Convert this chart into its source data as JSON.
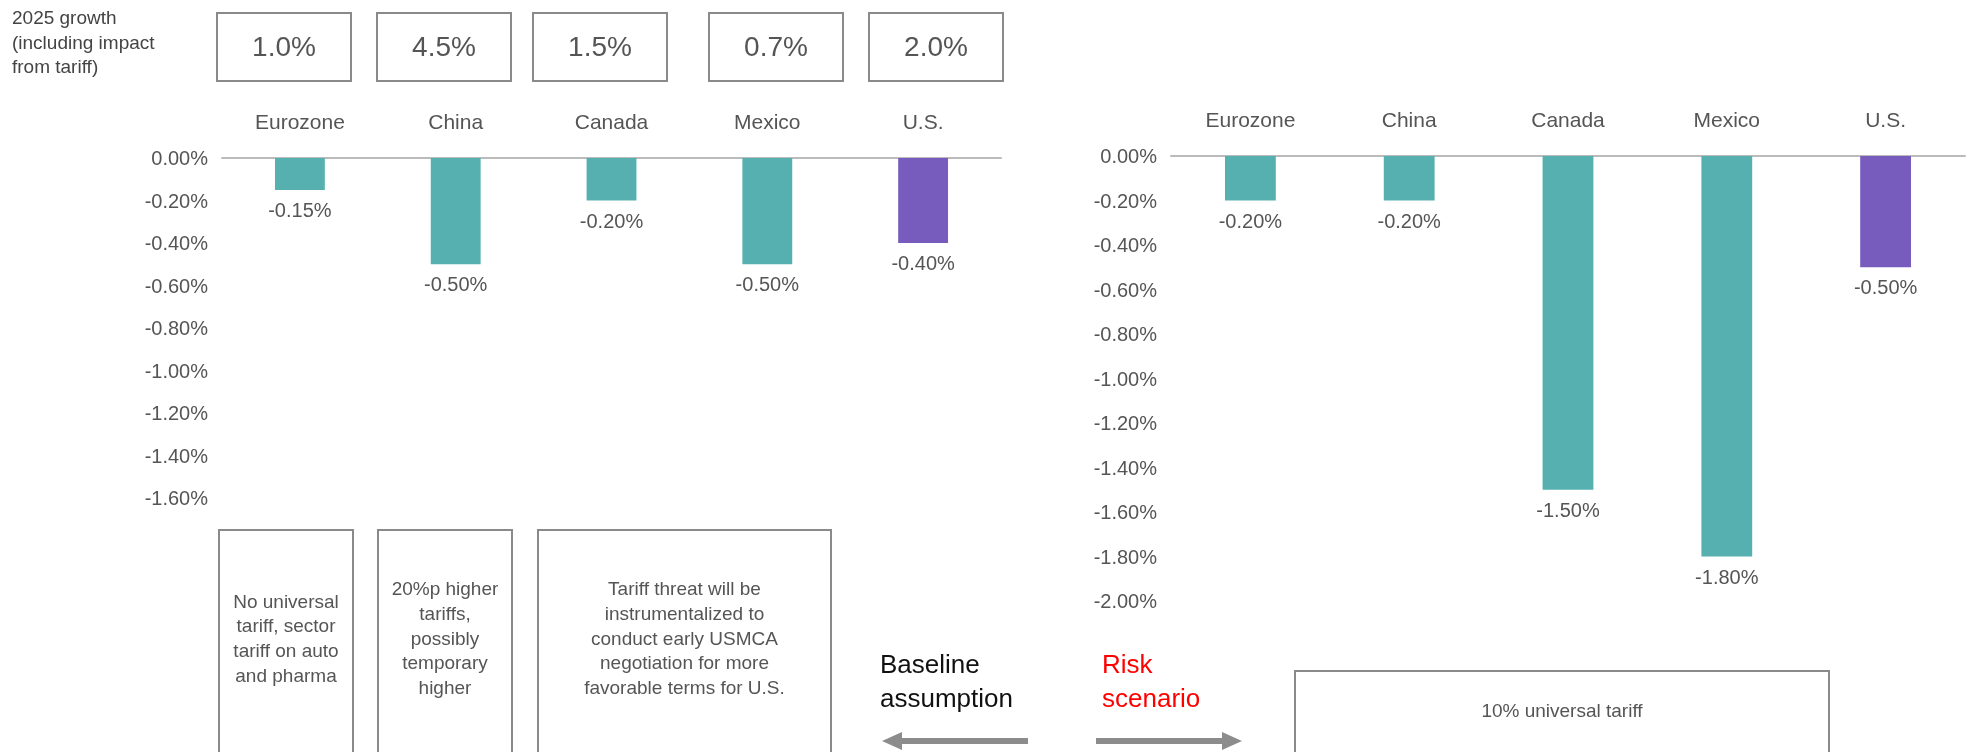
{
  "chart_data": [
    {
      "type": "bar",
      "categories": [
        "Eurozone",
        "China",
        "Canada",
        "Mexico",
        "U.S."
      ],
      "values": [
        -0.15,
        -0.5,
        -0.2,
        -0.5,
        -0.4
      ],
      "colors": [
        "#56b0b0",
        "#56b0b0",
        "#56b0b0",
        "#56b0b0",
        "#775cbd"
      ],
      "value_labels": [
        "-0.15%",
        "-0.50%",
        "-0.20%",
        "-0.50%",
        "-0.40%"
      ],
      "ylim": [
        -1.6,
        0
      ],
      "yticks": [
        {
          "value": 0,
          "label": "0.00%"
        },
        {
          "value": -0.2,
          "label": "-0.20%"
        },
        {
          "value": -0.4,
          "label": "-0.40%"
        },
        {
          "value": -0.6,
          "label": "-0.60%"
        },
        {
          "value": -0.8,
          "label": "-0.80%"
        },
        {
          "value": -1,
          "label": "-1.00%"
        },
        {
          "value": -1.2,
          "label": "-1.20%"
        },
        {
          "value": -1.4,
          "label": "-1.40%"
        },
        {
          "value": -1.6,
          "label": "-1.60%"
        }
      ],
      "grid": false,
      "annotations": [
        "2025 growth (including impact from tariff)",
        "1.0%",
        "4.5%",
        "1.5%",
        "0.7%",
        "2.0%",
        "No universal tariff, sector tariff on auto and pharma",
        "20%p higher tariffs, possibly temporary higher",
        "Tariff threat will be instrumentalized to conduct early USMCA negotiation for more favorable terms for U.S.",
        "Baseline assumption"
      ]
    },
    {
      "type": "bar",
      "categories": [
        "Eurozone",
        "China",
        "Canada",
        "Mexico",
        "U.S."
      ],
      "values": [
        -0.2,
        -0.2,
        -1.5,
        -1.8,
        -0.5
      ],
      "colors": [
        "#56b0b0",
        "#56b0b0",
        "#56b0b0",
        "#56b0b0",
        "#775cbd"
      ],
      "value_labels": [
        "-0.20%",
        "-0.20%",
        "-1.50%",
        "-1.80%",
        "-0.50%"
      ],
      "ylim": [
        -2,
        0
      ],
      "yticks": [
        {
          "value": 0,
          "label": "0.00%"
        },
        {
          "value": -0.2,
          "label": "-0.20%"
        },
        {
          "value": -0.4,
          "label": "-0.40%"
        },
        {
          "value": -0.6,
          "label": "-0.60%"
        },
        {
          "value": -0.8,
          "label": "-0.80%"
        },
        {
          "value": -1,
          "label": "-1.00%"
        },
        {
          "value": -1.2,
          "label": "-1.20%"
        },
        {
          "value": -1.4,
          "label": "-1.40%"
        },
        {
          "value": -1.6,
          "label": "-1.60%"
        },
        {
          "value": -1.8,
          "label": "-1.80%"
        },
        {
          "value": -2,
          "label": "-2.00%"
        }
      ],
      "grid": false,
      "annotations": [
        "Risk scenario",
        "10% universal tariff"
      ]
    }
  ]
}
